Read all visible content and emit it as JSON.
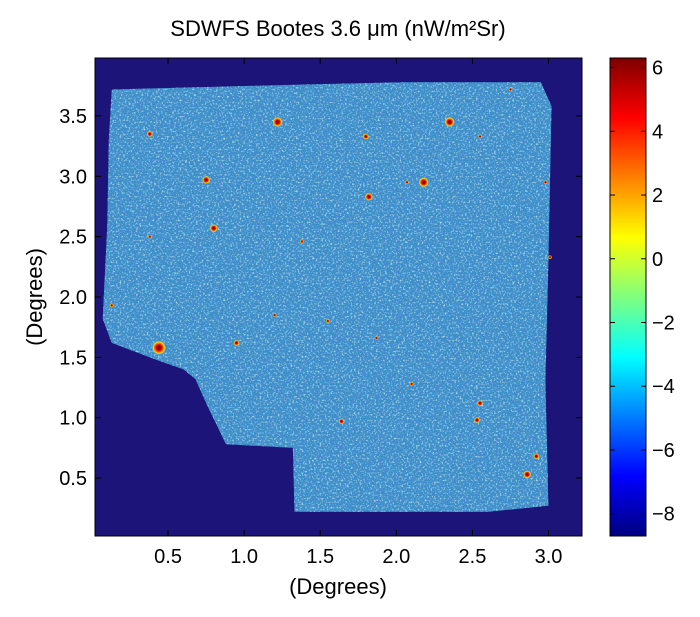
{
  "chart_data": {
    "type": "heatmap",
    "title": "SDWFS Bootes 3.6 μm   (nW/m²Sr)",
    "xlabel": "(Degrees)",
    "ylabel": "(Degrees)",
    "xlim": [
      0.02,
      3.22
    ],
    "ylim": [
      0.02,
      3.98
    ],
    "x_ticks": [
      {
        "value": 0.5,
        "label": "0.5"
      },
      {
        "value": 1.0,
        "label": "1.0"
      },
      {
        "value": 1.5,
        "label": "1.5"
      },
      {
        "value": 2.0,
        "label": "2.0"
      },
      {
        "value": 2.5,
        "label": "2.5"
      },
      {
        "value": 3.0,
        "label": "3.0"
      }
    ],
    "y_ticks": [
      {
        "value": 0.5,
        "label": "0.5"
      },
      {
        "value": 1.0,
        "label": "1.0"
      },
      {
        "value": 1.5,
        "label": "1.5"
      },
      {
        "value": 2.0,
        "label": "2.0"
      },
      {
        "value": 2.5,
        "label": "2.5"
      },
      {
        "value": 3.0,
        "label": "3.0"
      },
      {
        "value": 3.5,
        "label": "3.5"
      }
    ],
    "colorbar": {
      "range": [
        -8.7,
        6.3
      ],
      "colormap": "jet",
      "ticks": [
        {
          "value": 6,
          "label": "6"
        },
        {
          "value": 4,
          "label": "4"
        },
        {
          "value": 2,
          "label": "2"
        },
        {
          "value": 0,
          "label": "0"
        },
        {
          "value": -2,
          "label": "−2"
        },
        {
          "value": -4,
          "label": "−4"
        },
        {
          "value": -6,
          "label": "−6"
        },
        {
          "value": -8,
          "label": "−8"
        }
      ]
    },
    "background_color": "#1c1478",
    "field_color": "#3d8fc8",
    "field_outline": [
      [
        0.13,
        3.72
      ],
      [
        1.34,
        3.76
      ],
      [
        2.05,
        3.78
      ],
      [
        2.95,
        3.78
      ],
      [
        3.02,
        3.58
      ],
      [
        3.0,
        2.3
      ],
      [
        2.98,
        1.3
      ],
      [
        3.0,
        0.27
      ],
      [
        2.6,
        0.22
      ],
      [
        1.33,
        0.22
      ],
      [
        1.32,
        0.75
      ],
      [
        0.88,
        0.78
      ],
      [
        0.75,
        1.12
      ],
      [
        0.68,
        1.32
      ],
      [
        0.6,
        1.4
      ],
      [
        0.42,
        1.48
      ],
      [
        0.13,
        1.62
      ],
      [
        0.07,
        1.82
      ],
      [
        0.1,
        2.6
      ],
      [
        0.11,
        3.3
      ]
    ],
    "bright_sources": [
      {
        "x": 0.44,
        "y": 1.58,
        "size": 7
      },
      {
        "x": 1.22,
        "y": 3.45,
        "size": 5
      },
      {
        "x": 2.35,
        "y": 3.45,
        "size": 5
      },
      {
        "x": 2.18,
        "y": 2.95,
        "size": 5
      },
      {
        "x": 0.75,
        "y": 2.97,
        "size": 4
      },
      {
        "x": 0.8,
        "y": 2.57,
        "size": 4
      },
      {
        "x": 1.82,
        "y": 2.83,
        "size": 4
      },
      {
        "x": 2.86,
        "y": 0.53,
        "size": 4
      },
      {
        "x": 0.38,
        "y": 3.35,
        "size": 3
      },
      {
        "x": 1.8,
        "y": 3.33,
        "size": 3
      },
      {
        "x": 2.55,
        "y": 1.12,
        "size": 3
      },
      {
        "x": 2.53,
        "y": 0.98,
        "size": 3
      },
      {
        "x": 2.92,
        "y": 0.68,
        "size": 3
      },
      {
        "x": 0.95,
        "y": 1.62,
        "size": 3
      },
      {
        "x": 1.64,
        "y": 0.97,
        "size": 3
      },
      {
        "x": 1.87,
        "y": 1.66,
        "size": 2
      },
      {
        "x": 0.13,
        "y": 1.93,
        "size": 2
      },
      {
        "x": 0.38,
        "y": 2.5,
        "size": 2
      },
      {
        "x": 2.75,
        "y": 3.72,
        "size": 2
      },
      {
        "x": 2.98,
        "y": 2.95,
        "size": 2
      },
      {
        "x": 2.07,
        "y": 2.95,
        "size": 2
      },
      {
        "x": 2.55,
        "y": 3.33,
        "size": 2
      },
      {
        "x": 3.01,
        "y": 2.33,
        "size": 2
      },
      {
        "x": 1.38,
        "y": 2.46,
        "size": 2
      },
      {
        "x": 1.55,
        "y": 1.8,
        "size": 2
      },
      {
        "x": 2.1,
        "y": 1.28,
        "size": 2
      },
      {
        "x": 1.2,
        "y": 1.85,
        "size": 2
      }
    ]
  }
}
